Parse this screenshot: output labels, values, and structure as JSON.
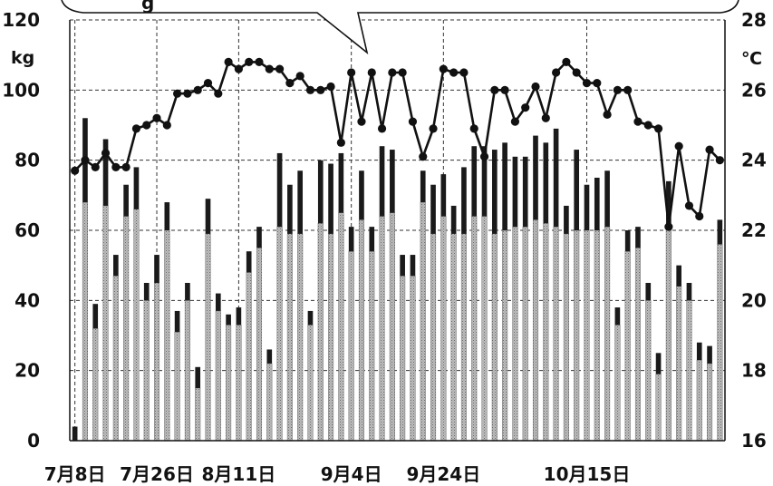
{
  "chart_data": {
    "type": "bar+line",
    "left_axis": {
      "unit": "kg",
      "ticks": [
        0,
        20,
        40,
        60,
        80,
        100,
        120
      ],
      "range": [
        0,
        120
      ]
    },
    "right_axis": {
      "unit": "℃",
      "ticks": [
        16,
        18,
        20,
        22,
        24,
        26,
        28
      ],
      "range": [
        16,
        28
      ]
    },
    "x_tick_labels": [
      "7月8日",
      "7月26日",
      "8月11日",
      "9月4日",
      "9月24日",
      "10月15日"
    ],
    "grid": true,
    "callout": {
      "visible_text": "g"
    },
    "series": [
      {
        "kind": "stacked_bar",
        "axis": "left",
        "total": [
          4,
          92,
          39,
          86,
          53,
          73,
          78,
          45,
          53,
          68,
          37,
          45,
          21,
          69,
          42,
          36,
          38,
          54,
          61,
          26,
          82,
          73,
          77,
          37,
          80,
          79,
          82,
          61,
          77,
          61,
          84,
          83,
          53,
          53,
          77,
          73,
          76,
          67,
          78,
          84,
          84,
          83,
          85,
          81,
          81,
          87,
          85,
          89,
          67,
          83,
          73,
          75,
          77,
          38,
          60,
          61,
          45,
          25,
          74,
          50,
          45,
          28,
          27,
          63
        ],
        "lower": [
          0,
          68,
          32,
          67,
          47,
          64,
          66,
          40,
          45,
          60,
          31,
          40,
          15,
          59,
          37,
          33,
          33,
          48,
          55,
          22,
          61,
          59,
          59,
          33,
          62,
          59,
          65,
          54,
          63,
          54,
          64,
          65,
          47,
          47,
          68,
          59,
          64,
          59,
          59,
          64,
          64,
          59,
          60,
          61,
          61,
          63,
          62,
          61,
          59,
          60,
          60,
          60,
          61,
          33,
          54,
          55,
          40,
          19,
          60,
          44,
          40,
          23,
          22,
          56
        ]
      },
      {
        "kind": "line",
        "axis": "right",
        "values": [
          23.7,
          24.0,
          23.8,
          24.2,
          23.8,
          23.8,
          24.9,
          25.0,
          25.2,
          25.0,
          25.9,
          25.9,
          26.0,
          26.2,
          25.9,
          26.8,
          26.6,
          26.8,
          26.8,
          26.6,
          26.6,
          26.2,
          26.4,
          26.0,
          26.0,
          26.1,
          24.5,
          26.5,
          25.1,
          26.5,
          24.9,
          26.5,
          26.5,
          25.1,
          24.1,
          24.9,
          26.6,
          26.5,
          26.5,
          24.9,
          24.1,
          26.0,
          26.0,
          25.1,
          25.5,
          26.1,
          25.2,
          26.5,
          26.8,
          26.5,
          26.2,
          26.2,
          25.3,
          26.0,
          26.0,
          25.1,
          25.0,
          24.9,
          22.1,
          24.4,
          22.7,
          22.4,
          24.3,
          24.0
        ]
      }
    ]
  }
}
